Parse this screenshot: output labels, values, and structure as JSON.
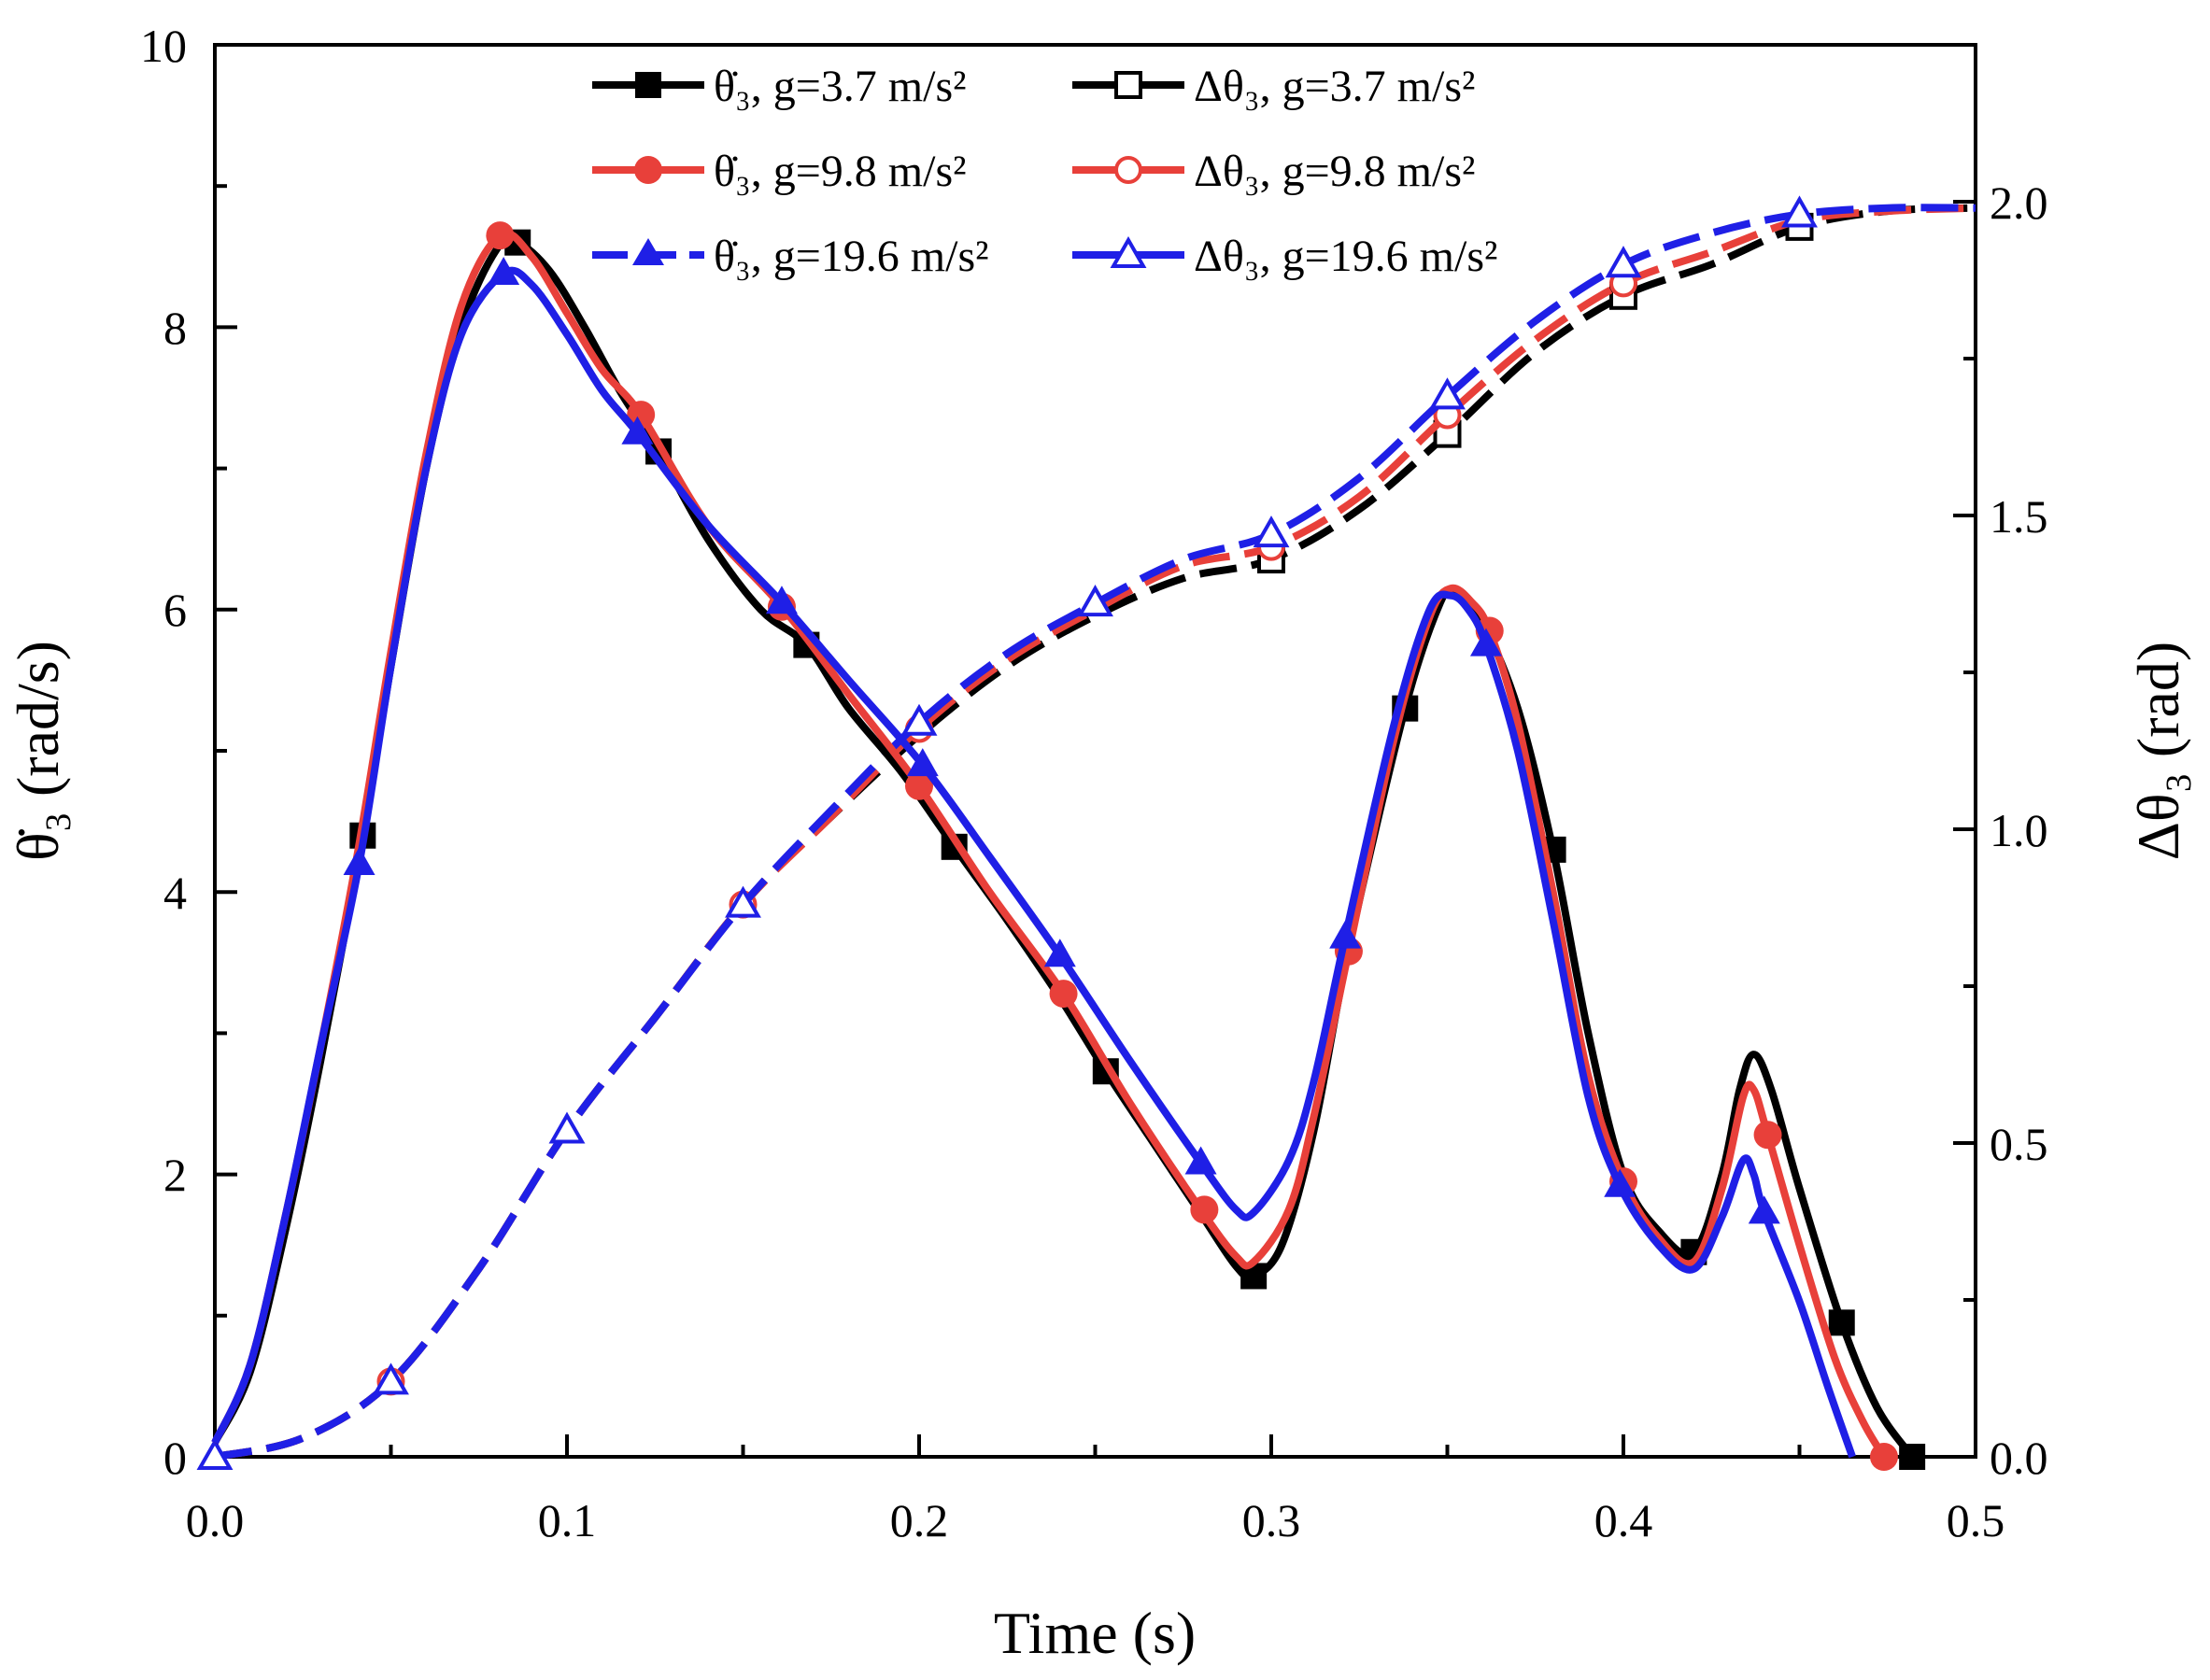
{
  "chart_data": {
    "type": "line",
    "xlabel": "Time (s)",
    "ylabel_left": "θ̇₃ (rad/s)",
    "ylabel_right": "Δθ₃ (rad)",
    "xlim": [
      0,
      0.5
    ],
    "ylim_left": [
      0,
      10
    ],
    "ylim_right": [
      0,
      2.25
    ],
    "x_ticks": [
      "0.0",
      "0.1",
      "0.2",
      "0.3",
      "0.4",
      "0.5"
    ],
    "y_left_ticks": [
      "0",
      "2",
      "4",
      "6",
      "8",
      "10"
    ],
    "y_right_ticks": [
      "0.0",
      "0.5",
      "1.0",
      "1.5",
      "2.0"
    ],
    "grid": false,
    "legend_position": "top",
    "series": [
      {
        "name": "θ̇₃, g=3.7 m/s²",
        "axis": "left",
        "color": "#000000",
        "style": "solid",
        "marker": "filled-square",
        "points": [
          [
            0,
            0.1
          ],
          [
            0.01,
            0.6
          ],
          [
            0.02,
            1.6
          ],
          [
            0.03,
            2.8
          ],
          [
            0.042,
            4.4
          ],
          [
            0.05,
            5.6
          ],
          [
            0.06,
            7.0
          ],
          [
            0.07,
            8.0
          ],
          [
            0.08,
            8.55
          ],
          [
            0.086,
            8.6
          ],
          [
            0.095,
            8.4
          ],
          [
            0.105,
            8.0
          ],
          [
            0.115,
            7.55
          ],
          [
            0.126,
            7.12
          ],
          [
            0.14,
            6.5
          ],
          [
            0.155,
            6.0
          ],
          [
            0.168,
            5.75
          ],
          [
            0.18,
            5.3
          ],
          [
            0.195,
            4.85
          ],
          [
            0.21,
            4.32
          ],
          [
            0.225,
            3.8
          ],
          [
            0.24,
            3.25
          ],
          [
            0.253,
            2.73
          ],
          [
            0.265,
            2.28
          ],
          [
            0.28,
            1.72
          ],
          [
            0.29,
            1.35
          ],
          [
            0.295,
            1.28
          ],
          [
            0.303,
            1.5
          ],
          [
            0.312,
            2.3
          ],
          [
            0.322,
            3.6
          ],
          [
            0.338,
            5.3
          ],
          [
            0.348,
            6.05
          ],
          [
            0.352,
            6.1
          ],
          [
            0.36,
            5.9
          ],
          [
            0.37,
            5.3
          ],
          [
            0.38,
            4.3
          ],
          [
            0.39,
            3.0
          ],
          [
            0.4,
            2.0
          ],
          [
            0.41,
            1.6
          ],
          [
            0.42,
            1.45
          ],
          [
            0.428,
            2.0
          ],
          [
            0.433,
            2.6
          ],
          [
            0.437,
            2.85
          ],
          [
            0.442,
            2.6
          ],
          [
            0.45,
            1.9
          ],
          [
            0.462,
            0.95
          ],
          [
            0.472,
            0.35
          ],
          [
            0.482,
            0.0
          ]
        ],
        "markers_at": [
          [
            0.042,
            4.4
          ],
          [
            0.086,
            8.6
          ],
          [
            0.126,
            7.12
          ],
          [
            0.168,
            5.75
          ],
          [
            0.21,
            4.32
          ],
          [
            0.253,
            2.73
          ],
          [
            0.295,
            1.28
          ],
          [
            0.338,
            5.3
          ],
          [
            0.38,
            4.3
          ],
          [
            0.42,
            1.45
          ],
          [
            0.462,
            0.95
          ],
          [
            0.482,
            0.0
          ]
        ]
      },
      {
        "name": "θ̇₃, g=9.8 m/s²",
        "axis": "left",
        "color": "#e8403a",
        "style": "solid",
        "marker": "filled-circle",
        "points": [
          [
            0,
            0.1
          ],
          [
            0.01,
            0.65
          ],
          [
            0.02,
            1.7
          ],
          [
            0.03,
            2.9
          ],
          [
            0.04,
            4.2
          ],
          [
            0.05,
            5.7
          ],
          [
            0.06,
            7.1
          ],
          [
            0.07,
            8.15
          ],
          [
            0.081,
            8.65
          ],
          [
            0.09,
            8.5
          ],
          [
            0.1,
            8.1
          ],
          [
            0.11,
            7.7
          ],
          [
            0.121,
            7.38
          ],
          [
            0.14,
            6.6
          ],
          [
            0.161,
            6.02
          ],
          [
            0.18,
            5.4
          ],
          [
            0.2,
            4.75
          ],
          [
            0.22,
            4.0
          ],
          [
            0.241,
            3.28
          ],
          [
            0.26,
            2.5
          ],
          [
            0.28,
            1.75
          ],
          [
            0.29,
            1.42
          ],
          [
            0.295,
            1.38
          ],
          [
            0.305,
            1.75
          ],
          [
            0.312,
            2.4
          ],
          [
            0.322,
            3.58
          ],
          [
            0.335,
            5.1
          ],
          [
            0.345,
            5.95
          ],
          [
            0.351,
            6.15
          ],
          [
            0.357,
            6.05
          ],
          [
            0.362,
            5.85
          ],
          [
            0.37,
            5.2
          ],
          [
            0.38,
            4.0
          ],
          [
            0.39,
            2.7
          ],
          [
            0.4,
            1.95
          ],
          [
            0.41,
            1.55
          ],
          [
            0.42,
            1.38
          ],
          [
            0.428,
            1.9
          ],
          [
            0.434,
            2.55
          ],
          [
            0.437,
            2.6
          ],
          [
            0.441,
            2.28
          ],
          [
            0.45,
            1.5
          ],
          [
            0.46,
            0.7
          ],
          [
            0.468,
            0.25
          ],
          [
            0.474,
            0.0
          ]
        ],
        "markers_at": [
          [
            0.081,
            8.65
          ],
          [
            0.121,
            7.38
          ],
          [
            0.161,
            6.02
          ],
          [
            0.2,
            4.75
          ],
          [
            0.241,
            3.28
          ],
          [
            0.281,
            1.75
          ],
          [
            0.322,
            3.58
          ],
          [
            0.362,
            5.85
          ],
          [
            0.4,
            1.95
          ],
          [
            0.441,
            2.28
          ],
          [
            0.474,
            0.0
          ]
        ]
      },
      {
        "name": "θ̇₃, g=19.6 m/s²",
        "axis": "left",
        "color": "#1f1fe6",
        "style": "solid",
        "marker": "filled-triangle",
        "points": [
          [
            0,
            0.1
          ],
          [
            0.01,
            0.65
          ],
          [
            0.02,
            1.7
          ],
          [
            0.03,
            2.9
          ],
          [
            0.041,
            4.2
          ],
          [
            0.05,
            5.6
          ],
          [
            0.06,
            7.0
          ],
          [
            0.07,
            7.95
          ],
          [
            0.082,
            8.38
          ],
          [
            0.09,
            8.3
          ],
          [
            0.1,
            7.95
          ],
          [
            0.11,
            7.55
          ],
          [
            0.12,
            7.25
          ],
          [
            0.14,
            6.6
          ],
          [
            0.161,
            6.05
          ],
          [
            0.18,
            5.5
          ],
          [
            0.201,
            4.9
          ],
          [
            0.22,
            4.25
          ],
          [
            0.24,
            3.55
          ],
          [
            0.26,
            2.8
          ],
          [
            0.28,
            2.08
          ],
          [
            0.29,
            1.75
          ],
          [
            0.295,
            1.73
          ],
          [
            0.305,
            2.1
          ],
          [
            0.312,
            2.65
          ],
          [
            0.321,
            3.68
          ],
          [
            0.335,
            5.2
          ],
          [
            0.345,
            6.0
          ],
          [
            0.351,
            6.1
          ],
          [
            0.356,
            6.0
          ],
          [
            0.361,
            5.75
          ],
          [
            0.37,
            5.0
          ],
          [
            0.38,
            3.8
          ],
          [
            0.39,
            2.55
          ],
          [
            0.399,
            1.92
          ],
          [
            0.41,
            1.5
          ],
          [
            0.42,
            1.33
          ],
          [
            0.428,
            1.7
          ],
          [
            0.434,
            2.1
          ],
          [
            0.437,
            2.0
          ],
          [
            0.44,
            1.73
          ],
          [
            0.45,
            1.1
          ],
          [
            0.458,
            0.5
          ],
          [
            0.465,
            0.0
          ]
        ],
        "markers_at": [
          [
            0.041,
            4.2
          ],
          [
            0.082,
            8.38
          ],
          [
            0.12,
            7.25
          ],
          [
            0.161,
            6.05
          ],
          [
            0.201,
            4.9
          ],
          [
            0.24,
            3.55
          ],
          [
            0.28,
            2.08
          ],
          [
            0.321,
            3.68
          ],
          [
            0.361,
            5.75
          ],
          [
            0.399,
            1.92
          ],
          [
            0.44,
            1.73
          ]
        ]
      },
      {
        "name": "Δθ₃, g=3.7 m/s²",
        "axis": "right",
        "color": "#000000",
        "style": "dashed",
        "marker": "open-square",
        "points": [
          [
            0,
            0.0
          ],
          [
            0.025,
            0.03
          ],
          [
            0.05,
            0.12
          ],
          [
            0.075,
            0.3
          ],
          [
            0.1,
            0.52
          ],
          [
            0.125,
            0.7
          ],
          [
            0.15,
            0.88
          ],
          [
            0.175,
            1.02
          ],
          [
            0.2,
            1.15
          ],
          [
            0.225,
            1.26
          ],
          [
            0.25,
            1.34
          ],
          [
            0.275,
            1.4
          ],
          [
            0.3,
            1.43
          ],
          [
            0.325,
            1.51
          ],
          [
            0.35,
            1.63
          ],
          [
            0.375,
            1.76
          ],
          [
            0.4,
            1.85
          ],
          [
            0.425,
            1.9
          ],
          [
            0.45,
            1.96
          ],
          [
            0.475,
            1.985
          ],
          [
            0.5,
            1.99
          ]
        ],
        "markers_at": [
          [
            0.3,
            1.43
          ],
          [
            0.35,
            1.63
          ],
          [
            0.4,
            1.85
          ],
          [
            0.45,
            1.96
          ]
        ]
      },
      {
        "name": "Δθ₃, g=9.8 m/s²",
        "axis": "right",
        "color": "#e8403a",
        "style": "dashed",
        "marker": "open-circle",
        "points": [
          [
            0,
            0.0
          ],
          [
            0.025,
            0.03
          ],
          [
            0.05,
            0.12
          ],
          [
            0.075,
            0.3
          ],
          [
            0.1,
            0.52
          ],
          [
            0.125,
            0.7
          ],
          [
            0.15,
            0.88
          ],
          [
            0.175,
            1.02
          ],
          [
            0.2,
            1.16
          ],
          [
            0.225,
            1.27
          ],
          [
            0.25,
            1.35
          ],
          [
            0.275,
            1.42
          ],
          [
            0.3,
            1.45
          ],
          [
            0.325,
            1.53
          ],
          [
            0.35,
            1.66
          ],
          [
            0.375,
            1.78
          ],
          [
            0.4,
            1.87
          ],
          [
            0.425,
            1.92
          ],
          [
            0.45,
            1.97
          ],
          [
            0.475,
            1.985
          ],
          [
            0.5,
            1.99
          ]
        ],
        "markers_at": [
          [
            0.05,
            0.12
          ],
          [
            0.15,
            0.88
          ],
          [
            0.2,
            1.16
          ],
          [
            0.3,
            1.45
          ],
          [
            0.35,
            1.66
          ],
          [
            0.4,
            1.87
          ]
        ]
      },
      {
        "name": "Δθ₃, g=19.6 m/s²",
        "axis": "right",
        "color": "#1f1fe6",
        "style": "dashed",
        "marker": "open-triangle",
        "points": [
          [
            0,
            0.0
          ],
          [
            0.025,
            0.03
          ],
          [
            0.05,
            0.12
          ],
          [
            0.075,
            0.3
          ],
          [
            0.1,
            0.52
          ],
          [
            0.125,
            0.7
          ],
          [
            0.15,
            0.88
          ],
          [
            0.175,
            1.03
          ],
          [
            0.2,
            1.17
          ],
          [
            0.225,
            1.28
          ],
          [
            0.25,
            1.36
          ],
          [
            0.275,
            1.43
          ],
          [
            0.3,
            1.47
          ],
          [
            0.325,
            1.56
          ],
          [
            0.35,
            1.69
          ],
          [
            0.375,
            1.81
          ],
          [
            0.4,
            1.9
          ],
          [
            0.425,
            1.95
          ],
          [
            0.45,
            1.98
          ],
          [
            0.475,
            1.99
          ],
          [
            0.5,
            1.99
          ]
        ],
        "markers_at": [
          [
            0,
            0.0
          ],
          [
            0.05,
            0.12
          ],
          [
            0.1,
            0.52
          ],
          [
            0.15,
            0.88
          ],
          [
            0.2,
            1.17
          ],
          [
            0.25,
            1.36
          ],
          [
            0.3,
            1.47
          ],
          [
            0.35,
            1.69
          ],
          [
            0.4,
            1.9
          ],
          [
            0.45,
            1.98
          ]
        ]
      }
    ]
  }
}
